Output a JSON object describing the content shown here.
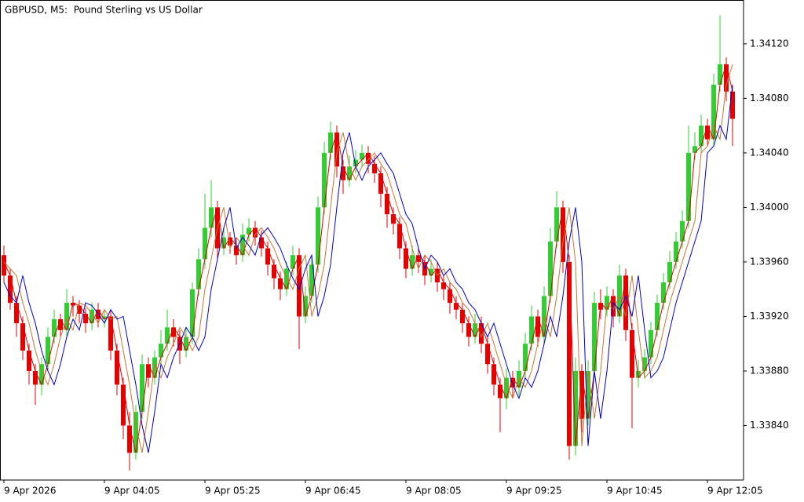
{
  "chart_data": {
    "type": "candlestick",
    "title": "GBPUSD, M5:  Pound Sterling vs US Dollar",
    "up_color": "#32cd32",
    "down_color": "#e60000",
    "ylim": [
      1.338,
      1.34151
    ],
    "yticks": [
      {
        "value": 1.3384,
        "label": "1.33840"
      },
      {
        "value": 1.3388,
        "label": "1.33880"
      },
      {
        "value": 1.3392,
        "label": "1.33920"
      },
      {
        "value": 1.3396,
        "label": "1.33960"
      },
      {
        "value": 1.34,
        "label": "1.34000"
      },
      {
        "value": 1.3404,
        "label": "1.34040"
      },
      {
        "value": 1.3408,
        "label": "1.34080"
      },
      {
        "value": 1.3412,
        "label": "1.34120"
      }
    ],
    "grid": false,
    "categories": [
      "9 Apr 2026",
      null,
      null,
      null,
      null,
      null,
      null,
      null,
      null,
      null,
      null,
      null,
      null,
      null,
      null,
      null,
      "9 Apr 04:05",
      null,
      null,
      null,
      null,
      null,
      null,
      null,
      null,
      null,
      null,
      null,
      null,
      null,
      null,
      null,
      "9 Apr 05:25",
      null,
      null,
      null,
      null,
      null,
      null,
      null,
      null,
      null,
      null,
      null,
      null,
      null,
      null,
      null,
      "9 Apr 06:45",
      null,
      null,
      null,
      null,
      null,
      null,
      null,
      null,
      null,
      null,
      null,
      null,
      null,
      null,
      null,
      "9 Apr 08:05",
      null,
      null,
      null,
      null,
      null,
      null,
      null,
      null,
      null,
      null,
      null,
      null,
      null,
      null,
      null,
      "9 Apr 09:25",
      null,
      null,
      null,
      null,
      null,
      null,
      null,
      null,
      null,
      null,
      null,
      null,
      null,
      null,
      null,
      "9 Apr 10:45",
      null,
      null,
      null,
      null,
      null,
      null,
      null,
      null,
      null,
      null,
      null,
      null,
      null,
      null,
      null,
      "9 Apr 12:05",
      null,
      null,
      null,
      null
    ],
    "open": [
      1.33965,
      1.3395,
      1.3393,
      1.33915,
      1.33895,
      1.3388,
      1.3387,
      1.33885,
      1.33905,
      1.33918,
      1.3391,
      1.3393,
      1.33928,
      1.33922,
      1.33915,
      1.33925,
      1.33918,
      1.3392,
      1.33895,
      1.3387,
      1.3384,
      1.3382,
      1.3385,
      1.33885,
      1.33875,
      1.3389,
      1.339,
      1.33912,
      1.33905,
      1.33895,
      1.33905,
      1.3394,
      1.33962,
      1.33985,
      1.34,
      1.3397,
      1.33978,
      1.33972,
      1.33965,
      1.3398,
      1.33985,
      1.33978,
      1.3397,
      1.33958,
      1.33948,
      1.3394,
      1.33955,
      1.33965,
      1.3392,
      1.33935,
      1.33958,
      1.34,
      1.3404,
      1.34055,
      1.3403,
      1.3402,
      1.3403,
      1.34035,
      1.3404,
      1.34032,
      1.34025,
      1.3401,
      1.33995,
      1.33988,
      1.3397,
      1.33955,
      1.33965,
      1.3396,
      1.3395,
      1.33955,
      1.33945,
      1.3394,
      1.3393,
      1.33925,
      1.33915,
      1.33905,
      1.33915,
      1.339,
      1.33885,
      1.3387,
      1.3386,
      1.33875,
      1.33868,
      1.3388,
      1.339,
      1.3392,
      1.33905,
      1.33935,
      1.33975,
      1.34,
      1.3396,
      1.33825,
      1.3388,
      1.33845,
      1.3388,
      1.3393,
      1.33925,
      1.33935,
      1.3392,
      1.3395,
      1.3391,
      1.33875,
      1.3388,
      1.3389,
      1.3391,
      1.3393,
      1.33945,
      1.3396,
      1.33975,
      1.3399,
      1.3404,
      1.34045,
      1.3406,
      1.3405,
      1.3409,
      1.34105,
      1.34085
    ],
    "high": [
      1.33972,
      1.33955,
      1.33935,
      1.3392,
      1.339,
      1.33885,
      1.3389,
      1.33912,
      1.33925,
      1.33922,
      1.3394,
      1.33935,
      1.33932,
      1.33926,
      1.3393,
      1.3393,
      1.33925,
      1.33925,
      1.339,
      1.33875,
      1.3385,
      1.33855,
      1.33892,
      1.3389,
      1.33895,
      1.3391,
      1.33925,
      1.33918,
      1.3391,
      1.33912,
      1.33945,
      1.3397,
      1.3401,
      1.3402,
      1.34005,
      1.33985,
      1.33982,
      1.33978,
      1.33988,
      1.33992,
      1.3399,
      1.33983,
      1.33975,
      1.33962,
      1.33953,
      1.3396,
      1.33972,
      1.3397,
      1.33942,
      1.33965,
      1.34008,
      1.34048,
      1.34063,
      1.3406,
      1.34035,
      1.34038,
      1.34042,
      1.34046,
      1.34045,
      1.34038,
      1.3403,
      1.34015,
      1.34,
      1.33993,
      1.33975,
      1.33972,
      1.3397,
      1.33965,
      1.33962,
      1.3396,
      1.3395,
      1.33945,
      1.33935,
      1.3393,
      1.3392,
      1.33922,
      1.3392,
      1.33905,
      1.3389,
      1.33875,
      1.33882,
      1.3388,
      1.33888,
      1.33908,
      1.33928,
      1.33925,
      1.33942,
      1.33985,
      1.34012,
      1.34005,
      1.33965,
      1.3389,
      1.33885,
      1.33888,
      1.33938,
      1.3394,
      1.33942,
      1.3394,
      1.33958,
      1.33955,
      1.33915,
      1.33888,
      1.33896,
      1.33916,
      1.33936,
      1.33952,
      1.33968,
      1.33982,
      1.33998,
      1.3406,
      1.34055,
      1.34068,
      1.34065,
      1.34098,
      1.34141,
      1.3411,
      1.3409
    ],
    "low": [
      1.33945,
      1.33925,
      1.33905,
      1.33888,
      1.3387,
      1.33855,
      1.33862,
      1.3388,
      1.339,
      1.33905,
      1.33905,
      1.3392,
      1.33915,
      1.33908,
      1.3391,
      1.33912,
      1.33912,
      1.33888,
      1.33862,
      1.3383,
      1.33807,
      1.33815,
      1.33845,
      1.33868,
      1.3387,
      1.33885,
      1.33895,
      1.33898,
      1.33885,
      1.3389,
      1.339,
      1.33935,
      1.33955,
      1.33978,
      1.33962,
      1.33965,
      1.33966,
      1.33958,
      1.3396,
      1.33975,
      1.33972,
      1.33964,
      1.3395,
      1.3394,
      1.33932,
      1.33935,
      1.3395,
      1.33896,
      1.33915,
      1.3393,
      1.33952,
      1.33995,
      1.34035,
      1.34022,
      1.3401,
      1.34015,
      1.34025,
      1.3403,
      1.34025,
      1.34018,
      1.34,
      1.33985,
      1.3398,
      1.33962,
      1.33948,
      1.3395,
      1.33952,
      1.33943,
      1.33945,
      1.33938,
      1.33932,
      1.33922,
      1.33918,
      1.33908,
      1.33898,
      1.339,
      1.33893,
      1.33878,
      1.33862,
      1.33835,
      1.33852,
      1.3386,
      1.33862,
      1.33875,
      1.33895,
      1.33898,
      1.339,
      1.3393,
      1.3397,
      1.33952,
      1.33815,
      1.33818,
      1.33835,
      1.3384,
      1.33875,
      1.33918,
      1.3392,
      1.33912,
      1.33915,
      1.33902,
      1.33838,
      1.33868,
      1.33874,
      1.33885,
      1.33905,
      1.33925,
      1.3394,
      1.33955,
      1.3397,
      1.33985,
      1.34035,
      1.3404,
      1.34045,
      1.34045,
      1.34085,
      1.34078,
      1.34045
    ],
    "close": [
      1.3395,
      1.3393,
      1.33915,
      1.33895,
      1.3388,
      1.3387,
      1.33885,
      1.33905,
      1.33918,
      1.3391,
      1.3393,
      1.33928,
      1.33922,
      1.33915,
      1.33925,
      1.33918,
      1.3392,
      1.33895,
      1.3387,
      1.3384,
      1.3382,
      1.3385,
      1.33885,
      1.33875,
      1.3389,
      1.339,
      1.33912,
      1.33905,
      1.33895,
      1.33905,
      1.3394,
      1.33962,
      1.33985,
      1.34,
      1.3397,
      1.33978,
      1.33972,
      1.33965,
      1.3398,
      1.33985,
      1.33978,
      1.3397,
      1.33958,
      1.33948,
      1.3394,
      1.33955,
      1.33965,
      1.3392,
      1.33935,
      1.33958,
      1.34,
      1.3404,
      1.34055,
      1.3403,
      1.3402,
      1.3403,
      1.34035,
      1.3404,
      1.34032,
      1.34025,
      1.3401,
      1.33995,
      1.33988,
      1.3397,
      1.33955,
      1.33965,
      1.3396,
      1.3395,
      1.33955,
      1.33945,
      1.3394,
      1.3393,
      1.33925,
      1.33915,
      1.33905,
      1.33915,
      1.339,
      1.33885,
      1.3387,
      1.3386,
      1.33875,
      1.33868,
      1.3388,
      1.339,
      1.3392,
      1.33905,
      1.33935,
      1.33975,
      1.34,
      1.3396,
      1.33825,
      1.3388,
      1.33845,
      1.3388,
      1.3393,
      1.33925,
      1.33935,
      1.3392,
      1.3395,
      1.3391,
      1.33875,
      1.3388,
      1.3389,
      1.3391,
      1.3393,
      1.33945,
      1.3396,
      1.33975,
      1.3399,
      1.3404,
      1.34045,
      1.3406,
      1.3405,
      1.3409,
      1.34105,
      1.34085,
      1.34065
    ],
    "lines": [
      {
        "color": "#e00000",
        "values": [
          1.3396,
          1.3395,
          1.3393,
          1.33915,
          1.33895,
          1.3388,
          1.3387,
          1.33885,
          1.33905,
          1.33918,
          1.3391,
          1.3393,
          1.33928,
          1.33922,
          1.33915,
          1.33925,
          1.33918,
          1.3392,
          1.33895,
          1.3387,
          1.3384,
          1.3382,
          1.3385,
          1.33885,
          1.33875,
          1.3389,
          1.339,
          1.33912,
          1.33905,
          1.33895,
          1.33905,
          1.3394,
          1.33962,
          1.33985,
          1.34,
          1.3397,
          1.33978,
          1.33972,
          1.33965,
          1.3398,
          1.33985,
          1.33978,
          1.3397,
          1.33958,
          1.33948,
          1.3394,
          1.33955,
          1.33965,
          1.3392,
          1.33935,
          1.33958,
          1.34,
          1.3404,
          1.34055,
          1.3403,
          1.3402,
          1.3403,
          1.34035,
          1.3404,
          1.34032,
          1.34025,
          1.3401,
          1.33995,
          1.33988,
          1.3397,
          1.33955,
          1.33965,
          1.3396,
          1.3395,
          1.33955,
          1.33945,
          1.3394,
          1.3393,
          1.33925,
          1.33915,
          1.33905,
          1.33915,
          1.339,
          1.33885,
          1.3387,
          1.3386,
          1.33875,
          1.33868,
          1.3388,
          1.339,
          1.3392,
          1.33905,
          1.33935,
          1.33975,
          1.34,
          1.3396,
          1.33825,
          1.3388,
          1.33845,
          1.3388,
          1.3393,
          1.33925,
          1.33935,
          1.3392,
          1.3395,
          1.3391,
          1.33875,
          1.3388,
          1.3389,
          1.3391,
          1.3393,
          1.33945,
          1.3396,
          1.33975,
          1.3399,
          1.3404,
          1.34045,
          1.3406,
          1.3405,
          1.3409,
          1.34105,
          1.34085
        ]
      },
      {
        "color": "#c87533",
        "values": [
          1.3396,
          1.33955,
          1.3395,
          1.3393,
          1.33915,
          1.33895,
          1.3388,
          1.3387,
          1.33885,
          1.33905,
          1.33918,
          1.3391,
          1.3393,
          1.33928,
          1.33922,
          1.33915,
          1.33925,
          1.33918,
          1.3392,
          1.33895,
          1.3387,
          1.3384,
          1.3382,
          1.3385,
          1.33885,
          1.33875,
          1.3389,
          1.339,
          1.33912,
          1.33905,
          1.33895,
          1.33905,
          1.3394,
          1.33962,
          1.33985,
          1.34,
          1.3397,
          1.33978,
          1.33972,
          1.33965,
          1.3398,
          1.33985,
          1.33978,
          1.3397,
          1.33958,
          1.33948,
          1.3394,
          1.33955,
          1.33965,
          1.3392,
          1.33935,
          1.33958,
          1.34,
          1.3404,
          1.34055,
          1.3403,
          1.3402,
          1.3403,
          1.34035,
          1.3404,
          1.34032,
          1.34025,
          1.3401,
          1.33995,
          1.33988,
          1.3397,
          1.33955,
          1.33965,
          1.3396,
          1.3395,
          1.33955,
          1.33945,
          1.3394,
          1.3393,
          1.33925,
          1.33915,
          1.33905,
          1.33915,
          1.339,
          1.33885,
          1.3387,
          1.3386,
          1.33875,
          1.33868,
          1.3388,
          1.339,
          1.3392,
          1.33905,
          1.33935,
          1.33975,
          1.34,
          1.3396,
          1.33825,
          1.3388,
          1.33845,
          1.3388,
          1.3393,
          1.33925,
          1.33935,
          1.3392,
          1.3395,
          1.3391,
          1.33875,
          1.3388,
          1.3389,
          1.3391,
          1.3393,
          1.33945,
          1.3396,
          1.33975,
          1.3399,
          1.3404,
          1.34045,
          1.3406,
          1.3405,
          1.3409,
          1.34105
        ]
      },
      {
        "color": "#0000cd",
        "values": [
          1.33945,
          1.33935,
          1.3393,
          1.3395,
          1.3393,
          1.33915,
          1.33895,
          1.3388,
          1.3387,
          1.33885,
          1.33905,
          1.33918,
          1.3391,
          1.3393,
          1.33928,
          1.33922,
          1.33915,
          1.33925,
          1.33918,
          1.3392,
          1.33895,
          1.3387,
          1.3384,
          1.3382,
          1.3385,
          1.33885,
          1.33875,
          1.3389,
          1.339,
          1.33912,
          1.33905,
          1.33895,
          1.33905,
          1.3394,
          1.33962,
          1.33985,
          1.34,
          1.3397,
          1.33978,
          1.33972,
          1.33965,
          1.3398,
          1.33985,
          1.33978,
          1.3397,
          1.33958,
          1.33948,
          1.3394,
          1.33955,
          1.33965,
          1.3392,
          1.33935,
          1.33958,
          1.34,
          1.3404,
          1.34055,
          1.3403,
          1.3402,
          1.3403,
          1.34035,
          1.3404,
          1.34032,
          1.34025,
          1.3401,
          1.33995,
          1.33988,
          1.3397,
          1.33955,
          1.33965,
          1.3396,
          1.3395,
          1.33955,
          1.33945,
          1.3394,
          1.3393,
          1.33925,
          1.33915,
          1.33905,
          1.33915,
          1.339,
          1.33885,
          1.3387,
          1.3386,
          1.33875,
          1.33868,
          1.3388,
          1.339,
          1.3392,
          1.33905,
          1.33935,
          1.33975,
          1.34,
          1.3396,
          1.33825,
          1.3388,
          1.33845,
          1.3388,
          1.3393,
          1.33925,
          1.33935,
          1.3392,
          1.3395,
          1.3391,
          1.33875,
          1.3388,
          1.3389,
          1.3391,
          1.3393,
          1.33945,
          1.3396,
          1.33975,
          1.3399,
          1.3404,
          1.34045,
          1.3406,
          1.3405,
          1.3409
        ]
      }
    ]
  }
}
